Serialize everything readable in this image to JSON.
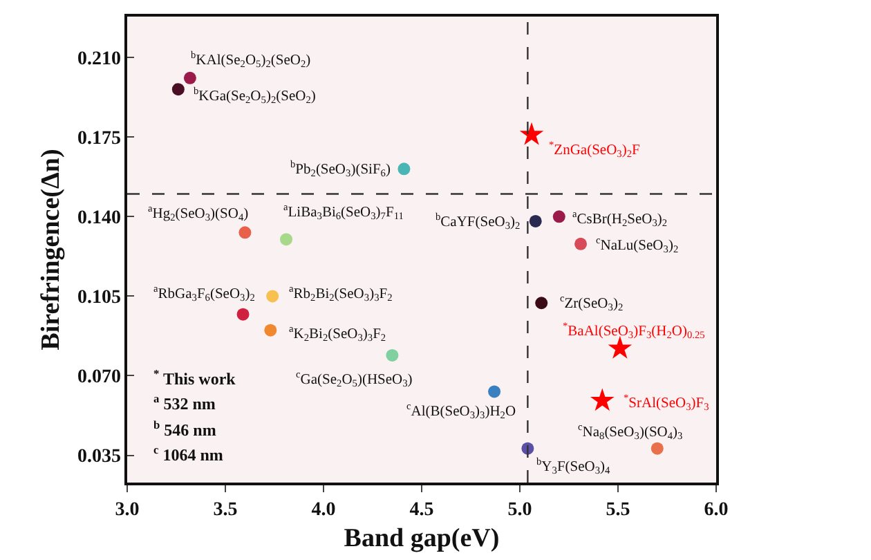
{
  "chart_data": {
    "type": "scatter",
    "xlabel": "Band gap(eV)",
    "ylabel": "Birefringence(Δn)",
    "xlim": [
      3.0,
      6.0
    ],
    "ylim": [
      0.023,
      0.228
    ],
    "xticks": [
      {
        "value": 3,
        "label": "3.0"
      },
      {
        "value": 3.5,
        "label": "3.5"
      },
      {
        "value": 4,
        "label": "4.0"
      },
      {
        "value": 4.5,
        "label": "4.5"
      },
      {
        "value": 5,
        "label": "5.0"
      },
      {
        "value": 5.5,
        "label": "5.5"
      },
      {
        "value": 6,
        "label": "6.0"
      }
    ],
    "yticks": [
      {
        "value": 0.035,
        "label": "0.035"
      },
      {
        "value": 0.07,
        "label": "0.070"
      },
      {
        "value": 0.105,
        "label": "0.105"
      },
      {
        "value": 0.14,
        "label": "0.140"
      },
      {
        "value": 0.175,
        "label": "0.175"
      },
      {
        "value": 0.21,
        "label": "0.210"
      }
    ],
    "grid": false,
    "legend": false,
    "ref_lines": [
      {
        "axis": "x",
        "value": 5.04,
        "line_style": "dashed",
        "color": "#333333"
      },
      {
        "axis": "y",
        "value": 0.15,
        "line_style": "dashed",
        "color": "#333333"
      }
    ],
    "series": [
      {
        "name": "$^{b}$KAl(Se$_{2}$O$_{5}$)$_{2}$(SeO$_{2}$)",
        "color": "#9a1a4a",
        "marker": "circle",
        "x": [
          3.32
        ],
        "values": [
          0.201
        ]
      },
      {
        "name": "$^{b}$KGa(Se$_{2}$O$_{5}$)$_{2}$(SeO$_{2}$)",
        "color": "#4a0f25",
        "marker": "circle",
        "x": [
          3.26
        ],
        "values": [
          0.196
        ]
      },
      {
        "name": "$^{b}$Pb$_{2}$(SeO$_{3}$)(SiF$_{6}$)",
        "color": "#4ab5b5",
        "marker": "circle",
        "x": [
          4.41
        ],
        "values": [
          0.161
        ]
      },
      {
        "name": "$^{a}$Hg$_{2}$(SeO$_{3}$)(SO$_{4}$)",
        "color": "#e8604a",
        "marker": "circle",
        "x": [
          3.6
        ],
        "values": [
          0.133
        ]
      },
      {
        "name": "$^{a}$LiBa$_{3}$Bi$_{6}$(SeO$_{3}$)$_{7}$F$_{11}$",
        "color": "#a8d88a",
        "marker": "circle",
        "x": [
          3.81
        ],
        "values": [
          0.13
        ]
      },
      {
        "name": "$^{b}$CaYF(SeO$_{3}$)$_{2}$",
        "color": "#2a2a50",
        "marker": "circle",
        "x": [
          5.08
        ],
        "values": [
          0.138
        ]
      },
      {
        "name": "$^{*}$ZnGa(SeO$_{3}$)$_{2}$F",
        "color": "#ff0000",
        "marker": "star",
        "x": [
          5.06
        ],
        "values": [
          0.176
        ]
      },
      {
        "name": "$^{a}$CsBr(H$_{2}$SeO$_{3}$)$_{2}$",
        "color": "#9a1a4a",
        "marker": "circle",
        "x": [
          5.2
        ],
        "values": [
          0.14
        ]
      },
      {
        "name": "$^{c}$NaLu(SeO$_{3}$)$_{2}$",
        "color": "#d84a5a",
        "marker": "circle",
        "x": [
          5.31
        ],
        "values": [
          0.128
        ]
      },
      {
        "name": "$^{c}$Zr(SeO$_{3}$)$_{2}$",
        "color": "#3a0a15",
        "marker": "circle",
        "x": [
          5.11
        ],
        "values": [
          0.102
        ]
      },
      {
        "name": "$^{*}$BaAl(SeO$_{3}$)F$_{3}$(H$_{2}$O)$_{0.25}$",
        "color": "#ff0000",
        "marker": "star",
        "x": [
          5.51
        ],
        "values": [
          0.082
        ]
      },
      {
        "name": "$^{*}$SrAl(SeO$_{3}$)F$_{3}$",
        "color": "#ff0000",
        "marker": "star",
        "x": [
          5.42
        ],
        "values": [
          0.059
        ]
      },
      {
        "name": "$^{c}$Na$_{8}$(SeO$_{3}$)(SO$_{4}$)$_{3}$",
        "color": "#e8704a",
        "marker": "circle",
        "x": [
          5.7
        ],
        "values": [
          0.038
        ]
      },
      {
        "name": "$^{b}$Y$_{3}$F(SeO$_{3}$)$_{4}$",
        "color": "#5a50a8",
        "marker": "circle",
        "x": [
          5.04
        ],
        "values": [
          0.038
        ]
      },
      {
        "name": "$^{c}$Al(B(SeO$_{3}$)$_{3}$)H$_{2}$O",
        "color": "#3a80c0",
        "marker": "circle",
        "x": [
          4.87
        ],
        "values": [
          0.063
        ]
      },
      {
        "name": "$^{c}$Ga(Se$_{2}$O$_{5}$)(HSeO$_{3}$)",
        "color": "#80d0a0",
        "marker": "circle",
        "x": [
          4.35
        ],
        "values": [
          0.079
        ]
      },
      {
        "name": "$^{a}$Rb$_{2}$Bi$_{2}$(SeO$_{3}$)$_{3}$F$_{2}$",
        "color": "#f8c050",
        "marker": "circle",
        "x": [
          3.74
        ],
        "values": [
          0.105
        ]
      },
      {
        "name": "$^{a}$RbGa$_{3}$F$_{6}$(SeO$_{3}$)$_{2}$",
        "color": "#d02040",
        "marker": "circle",
        "x": [
          3.59
        ],
        "values": [
          0.097
        ]
      },
      {
        "name": "$^{a}$K$_{2}$Bi$_{2}$(SeO$_{3}$)$_{3}$F$_{2}$",
        "color": "#f08830",
        "marker": "circle",
        "x": [
          3.73
        ],
        "values": [
          0.09
        ]
      }
    ],
    "annotations": [
      "$^{*}$ This work",
      "$^{a}$ 532 nm",
      "$^{b}$ 546 nm",
      "$^{c}$ 1064 nm"
    ]
  }
}
